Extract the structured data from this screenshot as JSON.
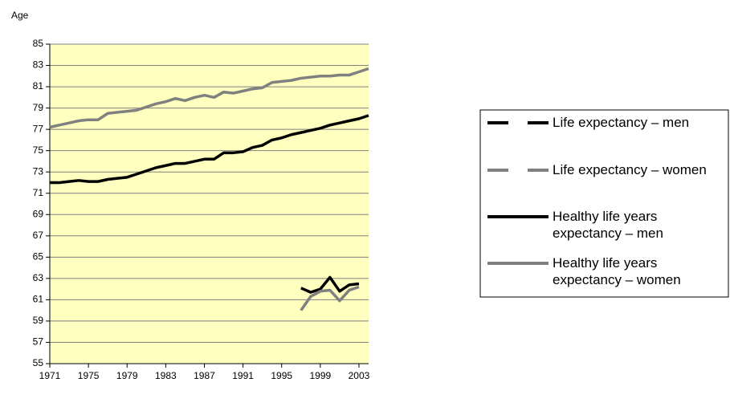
{
  "chart_data": {
    "type": "line",
    "y_label": "Age",
    "x": [
      1971,
      1972,
      1973,
      1974,
      1975,
      1976,
      1977,
      1978,
      1979,
      1980,
      1981,
      1982,
      1983,
      1984,
      1985,
      1986,
      1987,
      1988,
      1989,
      1990,
      1991,
      1992,
      1993,
      1994,
      1995,
      1996,
      1997,
      1998,
      1999,
      2000,
      2001,
      2002,
      2003,
      2004
    ],
    "series": [
      {
        "name": "Life expectancy – men",
        "color": "#000000",
        "dash": true,
        "values": [
          72.0,
          72.0,
          72.1,
          72.2,
          72.1,
          72.1,
          72.3,
          72.4,
          72.5,
          72.8,
          73.1,
          73.4,
          73.6,
          73.8,
          73.8,
          74.0,
          74.2,
          74.2,
          74.8,
          74.8,
          74.9,
          75.3,
          75.5,
          76.0,
          76.2,
          76.5,
          76.7,
          76.9,
          77.1,
          77.4,
          77.6,
          77.8,
          78.0,
          78.3
        ]
      },
      {
        "name": "Life expectancy – women",
        "color": "#808080",
        "dash": true,
        "values": [
          77.2,
          77.4,
          77.6,
          77.8,
          77.9,
          77.9,
          78.5,
          78.6,
          78.7,
          78.8,
          79.1,
          79.4,
          79.6,
          79.9,
          79.7,
          80.0,
          80.2,
          80.0,
          80.5,
          80.4,
          80.6,
          80.8,
          80.9,
          81.4,
          81.5,
          81.6,
          81.8,
          81.9,
          82.0,
          82.0,
          82.1,
          82.1,
          82.4,
          82.7
        ]
      },
      {
        "name": "Healthy life years expectancy – men",
        "color": "#000000",
        "dash": false,
        "values": [
          null,
          null,
          null,
          null,
          null,
          null,
          null,
          null,
          null,
          null,
          null,
          null,
          null,
          null,
          null,
          null,
          null,
          null,
          null,
          null,
          null,
          null,
          null,
          null,
          null,
          null,
          62.1,
          61.7,
          62.0,
          63.1,
          61.8,
          62.4,
          62.5,
          null
        ]
      },
      {
        "name": "Healthy life years expectancy – women",
        "color": "#808080",
        "dash": false,
        "values": [
          null,
          null,
          null,
          null,
          null,
          null,
          null,
          null,
          null,
          null,
          null,
          null,
          null,
          null,
          null,
          null,
          null,
          null,
          null,
          null,
          null,
          null,
          null,
          null,
          null,
          null,
          60.0,
          61.3,
          61.8,
          61.9,
          60.9,
          61.9,
          62.2,
          null
        ]
      }
    ],
    "xlim": [
      1971,
      2004
    ],
    "xticks": [
      1971,
      1975,
      1979,
      1983,
      1987,
      1991,
      1995,
      1999,
      2003
    ],
    "ylim": [
      55,
      85
    ],
    "yticks": [
      55,
      57,
      59,
      61,
      63,
      65,
      67,
      69,
      71,
      73,
      75,
      77,
      79,
      81,
      83,
      85
    ],
    "grid": true,
    "plot_background": "#ffffc0",
    "legend": "right"
  }
}
